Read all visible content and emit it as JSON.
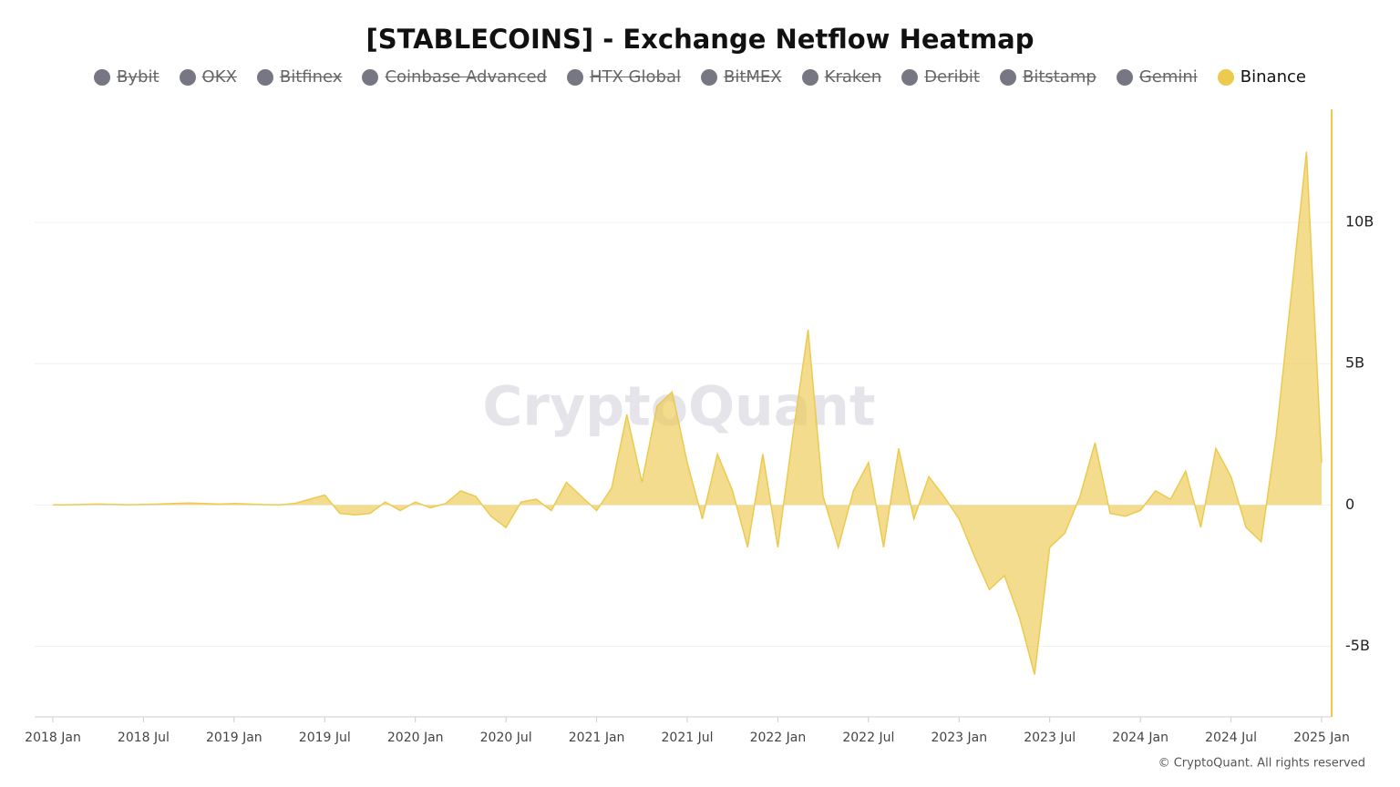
{
  "chart_data": {
    "type": "area",
    "title": "[STABLECOINS] - Exchange Netflow Heatmap",
    "watermark": "CryptoQuant",
    "footer": "© CryptoQuant. All rights reserved",
    "legend": [
      {
        "name": "Bybit",
        "color": "#777783",
        "visible": false
      },
      {
        "name": "OKX",
        "color": "#777783",
        "visible": false
      },
      {
        "name": "Bitfinex",
        "color": "#777783",
        "visible": false
      },
      {
        "name": "Coinbase Advanced",
        "color": "#777783",
        "visible": false
      },
      {
        "name": "HTX Global",
        "color": "#777783",
        "visible": false
      },
      {
        "name": "BitMEX",
        "color": "#777783",
        "visible": false
      },
      {
        "name": "Kraken",
        "color": "#777783",
        "visible": false
      },
      {
        "name": "Deribit",
        "color": "#777783",
        "visible": false
      },
      {
        "name": "Bitstamp",
        "color": "#777783",
        "visible": false
      },
      {
        "name": "Gemini",
        "color": "#777783",
        "visible": false
      },
      {
        "name": "Binance",
        "color": "#ecca50",
        "visible": true
      }
    ],
    "x": [
      "2018-01",
      "2018-02",
      "2018-03",
      "2018-04",
      "2018-05",
      "2018-06",
      "2018-07",
      "2018-08",
      "2018-09",
      "2018-10",
      "2018-11",
      "2018-12",
      "2019-01",
      "2019-02",
      "2019-03",
      "2019-04",
      "2019-05",
      "2019-06",
      "2019-07",
      "2019-08",
      "2019-09",
      "2019-10",
      "2019-11",
      "2019-12",
      "2020-01",
      "2020-02",
      "2020-03",
      "2020-04",
      "2020-05",
      "2020-06",
      "2020-07",
      "2020-08",
      "2020-09",
      "2020-10",
      "2020-11",
      "2020-12",
      "2021-01",
      "2021-02",
      "2021-03",
      "2021-04",
      "2021-05",
      "2021-06",
      "2021-07",
      "2021-08",
      "2021-09",
      "2021-10",
      "2021-11",
      "2021-12",
      "2022-01",
      "2022-02",
      "2022-03",
      "2022-04",
      "2022-05",
      "2022-06",
      "2022-07",
      "2022-08",
      "2022-09",
      "2022-10",
      "2022-11",
      "2022-12",
      "2023-01",
      "2023-02",
      "2023-03",
      "2023-04",
      "2023-05",
      "2023-06",
      "2023-07",
      "2023-08",
      "2023-09",
      "2023-10",
      "2023-11",
      "2023-12",
      "2024-01",
      "2024-02",
      "2024-03",
      "2024-04",
      "2024-05",
      "2024-06",
      "2024-07",
      "2024-08",
      "2024-09",
      "2024-10",
      "2024-11",
      "2024-12",
      "2025-01"
    ],
    "series": [
      {
        "name": "Binance",
        "color": "#ecca50",
        "values": [
          0,
          0,
          0.02,
          0.03,
          0.02,
          0,
          0.02,
          0.03,
          0.05,
          0.07,
          0.05,
          0.03,
          0.05,
          0.03,
          0.01,
          0,
          0.05,
          0.2,
          0.35,
          -0.3,
          -0.35,
          -0.3,
          0.1,
          -0.2,
          0.1,
          -0.1,
          0.05,
          0.5,
          0.3,
          -0.4,
          -0.8,
          0.1,
          0.2,
          -0.2,
          0.8,
          0.3,
          -0.2,
          0.6,
          3.2,
          0.8,
          3.5,
          4.0,
          1.5,
          -0.5,
          1.8,
          0.5,
          -1.5,
          1.8,
          -1.5,
          2.5,
          6.2,
          0.3,
          -1.5,
          0.5,
          1.5,
          -1.5,
          2.0,
          -0.5,
          1.0,
          0.3,
          -0.5,
          -1.8,
          -3.0,
          -2.5,
          -4.0,
          -6.0,
          -1.5,
          -1.0,
          0.3,
          2.2,
          -0.3,
          -0.4,
          -0.2,
          0.5,
          0.2,
          1.2,
          -0.8,
          2.0,
          1.0,
          -0.8,
          -1.3,
          2.5,
          7.5,
          12.5,
          1.5
        ]
      }
    ],
    "xlim": [
      "2018-01",
      "2025-01"
    ],
    "xticks": [
      {
        "value": "2018-01",
        "label": "2018 Jan"
      },
      {
        "value": "2018-07",
        "label": "2018 Jul"
      },
      {
        "value": "2019-01",
        "label": "2019 Jan"
      },
      {
        "value": "2019-07",
        "label": "2019 Jul"
      },
      {
        "value": "2020-01",
        "label": "2020 Jan"
      },
      {
        "value": "2020-07",
        "label": "2020 Jul"
      },
      {
        "value": "2021-01",
        "label": "2021 Jan"
      },
      {
        "value": "2021-07",
        "label": "2021 Jul"
      },
      {
        "value": "2022-01",
        "label": "2022 Jan"
      },
      {
        "value": "2022-07",
        "label": "2022 Jul"
      },
      {
        "value": "2023-01",
        "label": "2023 Jan"
      },
      {
        "value": "2023-07",
        "label": "2023 Jul"
      },
      {
        "value": "2024-01",
        "label": "2024 Jan"
      },
      {
        "value": "2024-07",
        "label": "2024 Jul"
      },
      {
        "value": "2025-01",
        "label": "2025 Jan"
      }
    ],
    "ylim": [
      -7.5,
      14
    ],
    "yticks": [
      {
        "value": -5,
        "label": "-5B"
      },
      0,
      {
        "value": 5,
        "label": "5B"
      },
      {
        "value": 10,
        "label": "10B"
      }
    ],
    "grid": true
  }
}
